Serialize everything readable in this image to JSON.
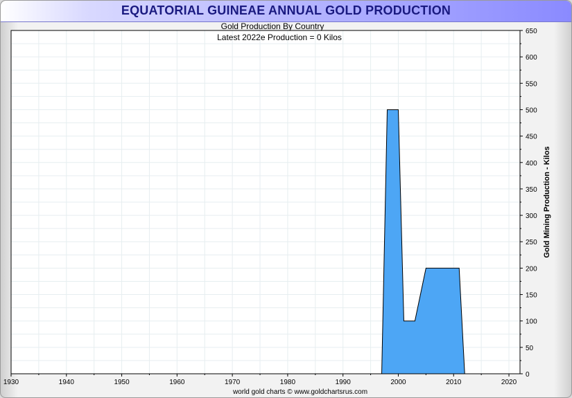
{
  "header": {
    "title": "EQUATORIAL GUINEAE ANNUAL GOLD PRODUCTION"
  },
  "chart_data": {
    "type": "area",
    "title": "Gold Production By Country",
    "subtitle": "Latest 2022e Production = 0 Kilos",
    "ylabel": "Gold Mining Production - Kilos",
    "xlabel": "",
    "footer": "world gold charts © www.goldchartsrus.com",
    "xlim": [
      1930,
      2022
    ],
    "ylim": [
      0,
      650
    ],
    "x_ticks": [
      1930,
      1940,
      1950,
      1960,
      1970,
      1980,
      1990,
      2000,
      2010,
      2020
    ],
    "y_ticks": [
      0,
      50,
      100,
      150,
      200,
      250,
      300,
      350,
      400,
      450,
      500,
      550,
      600,
      650
    ],
    "grid": true,
    "colors": {
      "fill": "#4da6f5",
      "stroke": "#000000",
      "grid": "#e6eef0"
    },
    "series": [
      {
        "x": [
          1997,
          1998,
          2000,
          2001,
          2003,
          2005,
          2006,
          2007,
          2008,
          2009,
          2010,
          2011,
          2012
        ],
        "values": [
          0,
          500,
          500,
          100,
          100,
          200,
          200,
          200,
          200,
          200,
          200,
          200,
          0
        ]
      }
    ]
  }
}
